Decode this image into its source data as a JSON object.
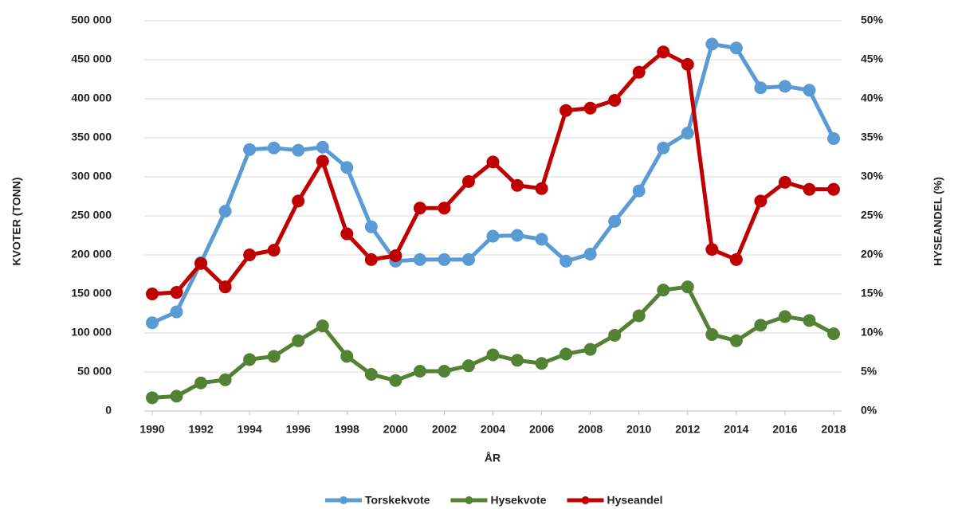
{
  "chart_data": {
    "type": "line",
    "x": [
      1990,
      1991,
      1992,
      1993,
      1994,
      1995,
      1996,
      1997,
      1998,
      1999,
      2000,
      2001,
      2002,
      2003,
      2004,
      2005,
      2006,
      2007,
      2008,
      2009,
      2010,
      2011,
      2012,
      2013,
      2014,
      2015,
      2016,
      2017,
      2018
    ],
    "xlim": [
      1990,
      2018
    ],
    "xticks": [
      1990,
      1992,
      1994,
      1996,
      1998,
      2000,
      2002,
      2004,
      2006,
      2008,
      2010,
      2012,
      2014,
      2016,
      2018
    ],
    "x_label": "ÅR",
    "y_label": "KVOTER  (TONN)",
    "y2_label": "HYSEANDEL (%)",
    "ylim": [
      0,
      500000
    ],
    "yticks": [
      0,
      {
        "value": 50000,
        "label": "50 000"
      },
      {
        "value": 100000,
        "label": "100 000"
      },
      {
        "value": 150000,
        "label": "150 000"
      },
      {
        "value": 200000,
        "label": "200 000"
      },
      {
        "value": 250000,
        "label": "250 000"
      },
      {
        "value": 300000,
        "label": "300 000"
      },
      {
        "value": 350000,
        "label": "350 000"
      },
      {
        "value": 400000,
        "label": "400 000"
      },
      {
        "value": 450000,
        "label": "450 000"
      },
      {
        "value": 500000,
        "label": "500 000"
      }
    ],
    "y2lim": [
      0,
      50
    ],
    "y2ticks": [
      {
        "value": 0,
        "label": "0%"
      },
      {
        "value": 5,
        "label": "5%"
      },
      {
        "value": 10,
        "label": "10%"
      },
      {
        "value": 15,
        "label": "15%"
      },
      {
        "value": 20,
        "label": "20%"
      },
      {
        "value": 25,
        "label": "25%"
      },
      {
        "value": 30,
        "label": "30%"
      },
      {
        "value": 35,
        "label": "35%"
      },
      {
        "value": 40,
        "label": "40%"
      },
      {
        "value": 45,
        "label": "45%"
      },
      {
        "value": 50,
        "label": "50%"
      }
    ],
    "grid": true,
    "legend": "bottom",
    "series": [
      {
        "name": "Torskekvote",
        "color": "#5b9bd5",
        "values": [
          113000,
          127000,
          190000,
          256000,
          335000,
          337000,
          334000,
          338000,
          312000,
          236000,
          192000,
          194000,
          194000,
          194000,
          224000,
          225000,
          220000,
          192000,
          201000,
          243000,
          282000,
          337000,
          356000,
          470000,
          465000,
          414000,
          416000,
          411000,
          349000
        ]
      },
      {
        "name": "Hysekvote",
        "color": "#548235",
        "values": [
          17000,
          19000,
          36000,
          40000,
          66000,
          70000,
          90000,
          109000,
          70000,
          47000,
          39000,
          51000,
          51000,
          58000,
          72000,
          65000,
          61000,
          73000,
          79000,
          97000,
          122000,
          155000,
          159000,
          98000,
          90000,
          110000,
          121000,
          116000,
          99000
        ]
      },
      {
        "name": "Hyseandel",
        "color": "#c00000",
        "axis": "y2",
        "values": [
          15.0,
          15.2,
          18.9,
          15.9,
          20.0,
          20.6,
          26.9,
          32.0,
          22.7,
          19.4,
          19.9,
          26.0,
          26.0,
          29.4,
          31.9,
          28.9,
          28.5,
          38.5,
          38.8,
          39.8,
          43.4,
          46.0,
          44.4,
          20.7,
          19.4,
          26.9,
          29.3,
          28.4,
          28.4
        ]
      }
    ]
  }
}
